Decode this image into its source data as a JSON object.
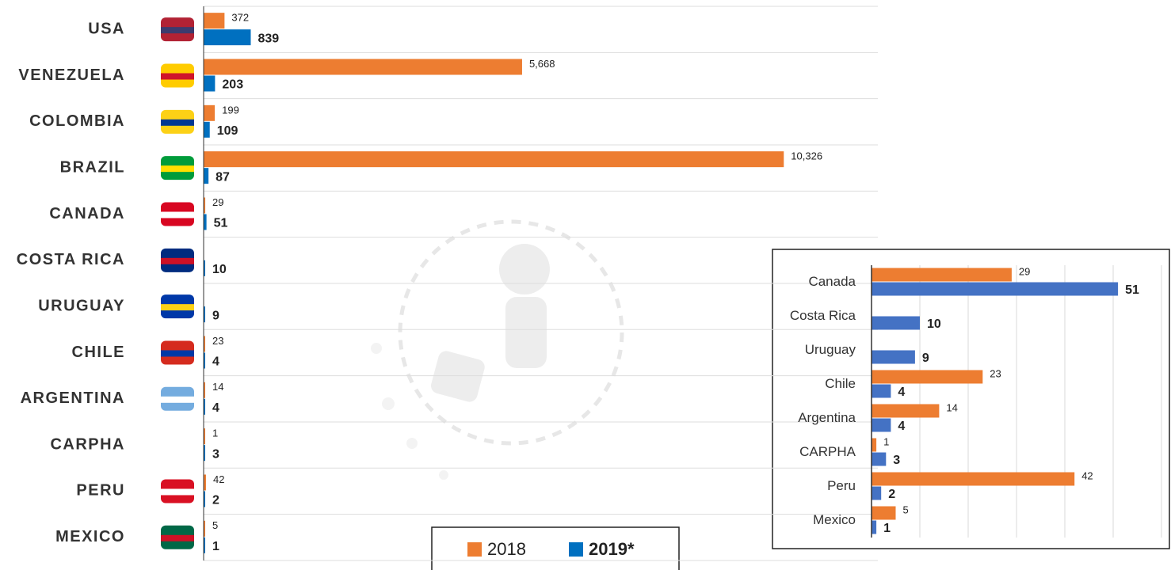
{
  "chart_data": [
    {
      "type": "bar",
      "orientation": "horizontal",
      "categories": [
        "USA",
        "VENEZUELA",
        "COLOMBIA",
        "BRAZIL",
        "CANADA",
        "COSTA RICA",
        "URUGUAY",
        "CHILE",
        "ARGENTINA",
        "CARPHA",
        "PERU",
        "MEXICO"
      ],
      "series": [
        {
          "name": "2018",
          "color": "#ed7d31",
          "values": [
            372,
            5668,
            199,
            10326,
            29,
            null,
            null,
            23,
            14,
            1,
            42,
            5
          ],
          "value_labels": [
            "372",
            "5,668",
            "199",
            "10,326",
            "29",
            null,
            null,
            "23",
            "14",
            "1",
            "42",
            "5"
          ]
        },
        {
          "name": "2019*",
          "color": "#0070c0",
          "values": [
            839,
            203,
            109,
            87,
            51,
            10,
            9,
            4,
            4,
            3,
            2,
            1
          ]
        }
      ],
      "xlim": [
        0,
        12000
      ],
      "legend": "bottom"
    },
    {
      "type": "bar",
      "orientation": "horizontal",
      "categories": [
        "Canada",
        "Costa Rica",
        "Uruguay",
        "Chile",
        "Argentina",
        "CARPHA",
        "Peru",
        "Mexico"
      ],
      "series": [
        {
          "name": "2018",
          "color": "#ed7d31",
          "values": [
            29,
            null,
            null,
            23,
            14,
            1,
            42,
            5
          ]
        },
        {
          "name": "2019*",
          "color": "#4472c4",
          "values": [
            51,
            10,
            9,
            4,
            4,
            3,
            2,
            1
          ]
        }
      ],
      "xlim": [
        0,
        60
      ],
      "xticks": [
        0,
        10,
        20,
        30,
        40,
        50,
        60
      ],
      "grid": true
    }
  ]
}
